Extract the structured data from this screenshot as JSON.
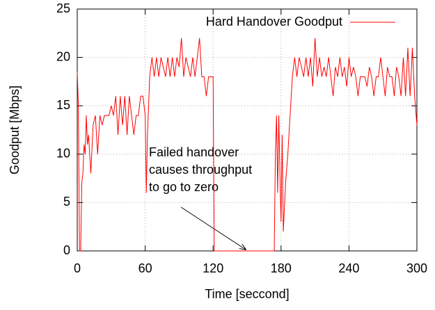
{
  "chart_data": {
    "type": "line",
    "xlabel": "Time [seccond]",
    "ylabel": "Goodput [Mbps]",
    "annotation": [
      "Failed handover",
      "causes throughput",
      "to go to zero"
    ],
    "x": [
      0,
      1,
      2,
      3,
      4,
      5,
      6,
      7,
      8,
      9,
      10,
      12,
      14,
      16,
      18,
      20,
      22,
      24,
      26,
      28,
      30,
      32,
      34,
      36,
      38,
      40,
      42,
      44,
      46,
      48,
      50,
      52,
      54,
      56,
      58,
      60,
      61,
      62,
      64,
      66,
      68,
      70,
      72,
      74,
      76,
      78,
      80,
      82,
      84,
      86,
      88,
      90,
      92,
      94,
      96,
      98,
      100,
      102,
      104,
      106,
      108,
      110,
      112,
      114,
      116,
      118,
      120,
      121,
      122,
      130,
      140,
      150,
      160,
      170,
      174,
      175,
      176,
      177,
      178,
      179,
      180,
      181,
      182,
      184,
      186,
      188,
      190,
      192,
      194,
      196,
      198,
      200,
      202,
      204,
      206,
      208,
      210,
      212,
      214,
      216,
      218,
      220,
      222,
      224,
      226,
      228,
      230,
      232,
      234,
      236,
      238,
      240,
      242,
      244,
      246,
      248,
      250,
      252,
      254,
      256,
      258,
      260,
      262,
      264,
      266,
      268,
      270,
      272,
      274,
      276,
      278,
      280,
      282,
      284,
      286,
      288,
      290,
      292,
      294,
      296,
      298,
      300
    ],
    "series": [
      {
        "name": "Hard Handover Goodput",
        "color": "#ff0000",
        "values": [
          18.5,
          15,
          0,
          0,
          7,
          8,
          11,
          10,
          14,
          11,
          12,
          8,
          13,
          14,
          10,
          14,
          13,
          14,
          14,
          14,
          15,
          14,
          16,
          12,
          16,
          13,
          16,
          12,
          16,
          14,
          12,
          14,
          14,
          16,
          16,
          14,
          6,
          12,
          18,
          20,
          18,
          20,
          18,
          20,
          19,
          18,
          20,
          18,
          20,
          18,
          20,
          19,
          22,
          18,
          20,
          19,
          18,
          20,
          18,
          20,
          22,
          18,
          18,
          16,
          18,
          18,
          18,
          0,
          0,
          0,
          0,
          0,
          0,
          0,
          0,
          10,
          14,
          6,
          14,
          8,
          3,
          12,
          2,
          7,
          10,
          14,
          18,
          20,
          18,
          20,
          19,
          18,
          20,
          18,
          20,
          17,
          22,
          18,
          20,
          18,
          19,
          18,
          20,
          18,
          16,
          19,
          18,
          20,
          18,
          19,
          17,
          20,
          18,
          19,
          18,
          16,
          18,
          18,
          18,
          17,
          19,
          18,
          16,
          18,
          18,
          20,
          18,
          16,
          19,
          18,
          18,
          16,
          19,
          18,
          16,
          20,
          16,
          21,
          16,
          21,
          16,
          13
        ]
      }
    ],
    "xlim": [
      0,
      300
    ],
    "ylim": [
      0,
      25
    ],
    "xticks": [
      0,
      60,
      120,
      180,
      240,
      300
    ],
    "yticks": [
      0,
      5,
      10,
      15,
      20,
      25
    ],
    "grid": true,
    "legend": "top-right"
  }
}
